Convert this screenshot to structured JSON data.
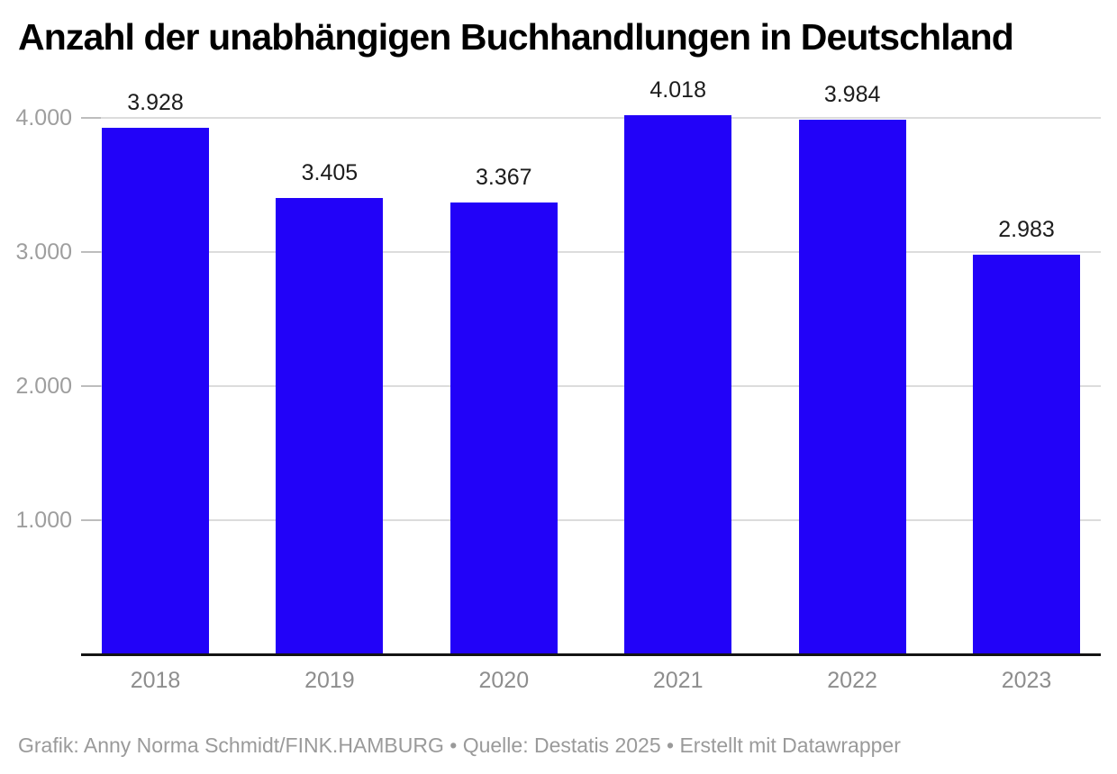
{
  "title": "Anzahl der unabhängigen Buchhandlungen in Deutschland",
  "footer": "Grafik: Anny Norma Schmidt/FINK.HAMBURG • Quelle: Destatis 2025 • Erstellt mit Datawrapper",
  "colors": {
    "bar": "#2202f8",
    "grid": "#dcdcdc",
    "tick_dash": "#bdbdbd",
    "y_axis_text": "#9e9e9e",
    "x_axis_text": "#8d8d8d",
    "value_text": "#1c1c1c",
    "baseline": "#141414",
    "title_text": "#000000",
    "footer_text": "#9a9a9a",
    "background": "#ffffff"
  },
  "chart_data": {
    "type": "bar",
    "title": "Anzahl der unabhängigen Buchhandlungen in Deutschland",
    "categories": [
      "2018",
      "2019",
      "2020",
      "2021",
      "2022",
      "2023"
    ],
    "values": [
      3928,
      3405,
      3367,
      4018,
      3984,
      2983
    ],
    "value_labels": [
      "3.928",
      "3.405",
      "3.367",
      "4.018",
      "3.984",
      "2.983"
    ],
    "xlabel": "",
    "ylabel": "",
    "ylim": [
      0,
      4000
    ],
    "y_ticks": [
      {
        "value": 1000,
        "label": "1.000"
      },
      {
        "value": 2000,
        "label": "2.000"
      },
      {
        "value": 3000,
        "label": "3.000"
      },
      {
        "value": 4000,
        "label": "4.000"
      }
    ],
    "grid": "horizontal",
    "legend": "none",
    "bar_color": "#2202f8"
  }
}
